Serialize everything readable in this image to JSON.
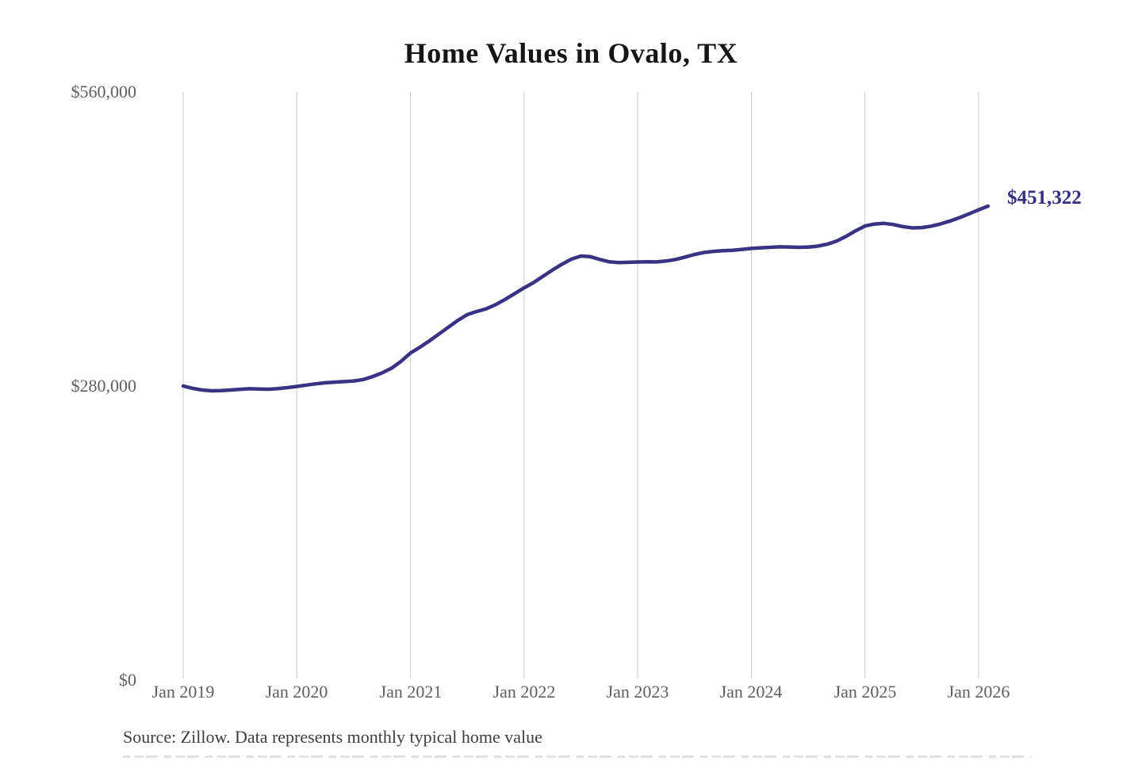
{
  "title": "Home Values in Ovalo, TX",
  "source_note": "Source: Zillow. Data represents monthly typical home value",
  "annotation": {
    "last_value_label": "$451,322"
  },
  "colors": {
    "line": "#3a3285",
    "annotation_text": "#332e80",
    "grid": "#cccccc",
    "tick_text": "#5f5f5f",
    "title_text": "#161616",
    "source_text": "#3d3d3d",
    "background": "#ffffff"
  },
  "chart_data": {
    "type": "line",
    "title": "Home Values in Ovalo, TX",
    "xlabel": "",
    "ylabel": "",
    "x_tick_labels": [
      "Jan 2019",
      "Jan 2020",
      "Jan 2021",
      "Jan 2022",
      "Jan 2023",
      "Jan 2024",
      "Jan 2025",
      "Jan 2026"
    ],
    "y_tick_labels": [
      "$0",
      "$280,000",
      "$560,000"
    ],
    "y_ticks": [
      0,
      280000,
      560000
    ],
    "ylim": [
      0,
      560000
    ],
    "grid": "vertical-only",
    "legend_position": "none",
    "months_per_point": 1,
    "start_month": "2019-01",
    "end_month": "2026-02",
    "series": [
      {
        "name": "Typical home value",
        "values": [
          280100,
          277800,
          276200,
          275500,
          275700,
          276200,
          276900,
          277400,
          277200,
          277000,
          277600,
          278500,
          279600,
          280900,
          282100,
          283100,
          283700,
          284200,
          284800,
          286200,
          289000,
          292500,
          297000,
          303500,
          311500,
          317000,
          323000,
          329500,
          336000,
          342500,
          348000,
          351000,
          353500,
          357500,
          362500,
          368000,
          373500,
          378500,
          384500,
          390500,
          396000,
          400800,
          403800,
          403200,
          400500,
          398300,
          397600,
          397800,
          398100,
          398300,
          398200,
          399000,
          400500,
          402800,
          405300,
          407200,
          408200,
          408800,
          409300,
          410100,
          411000,
          411600,
          412100,
          412500,
          412400,
          412100,
          412300,
          413200,
          415000,
          418000,
          422500,
          427800,
          432400,
          434300,
          434900,
          433800,
          431800,
          430600,
          430900,
          432200,
          434400,
          437200,
          440400,
          444000,
          447800,
          451322
        ],
        "final_value": 451322,
        "final_value_label": "$451,322"
      }
    ]
  }
}
